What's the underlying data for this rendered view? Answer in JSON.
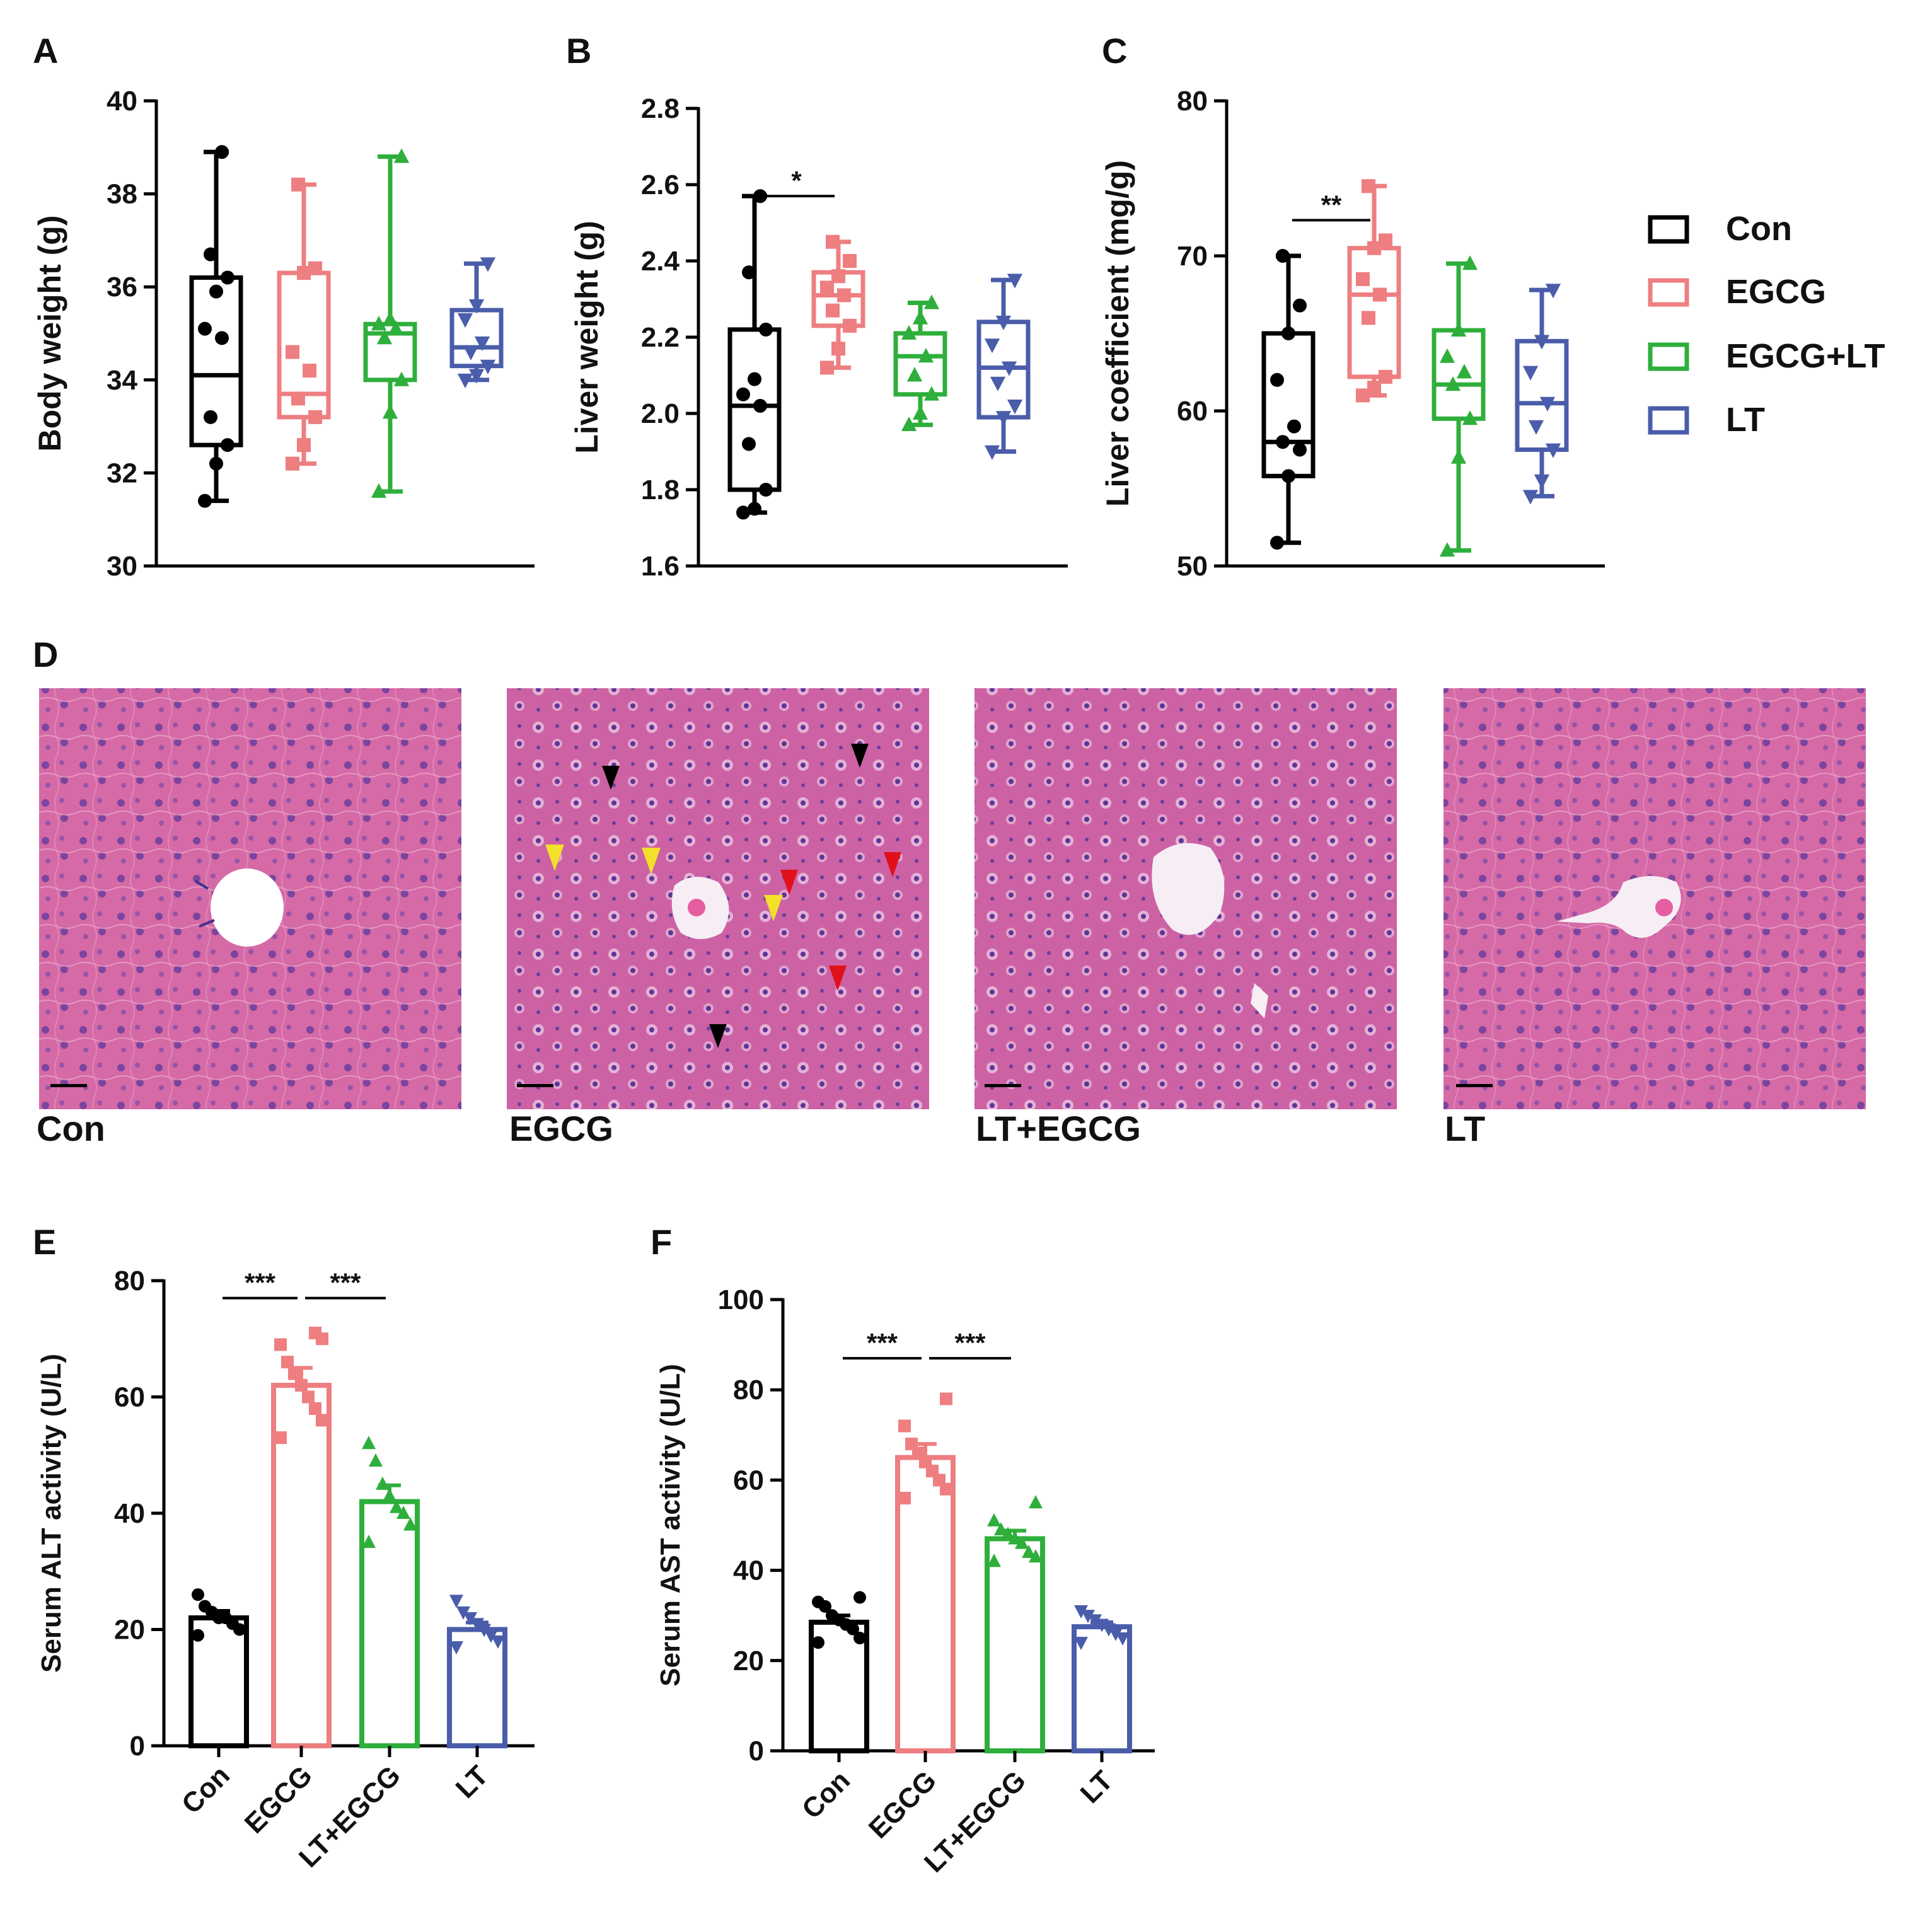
{
  "colors": {
    "Con": "#000000",
    "EGCG": "#EE7E80",
    "EGCG+LT": "#2EAF3B",
    "LT": "#4A5DAA",
    "axis": "#000000"
  },
  "panels": {
    "A": "A",
    "B": "B",
    "C": "C",
    "D": "D",
    "E": "E",
    "F": "F"
  },
  "legend": {
    "items": [
      {
        "label": "Con",
        "color": "#000000"
      },
      {
        "label": "EGCG",
        "color": "#EE7E80"
      },
      {
        "label": "EGCG+LT",
        "color": "#2EAF3B"
      },
      {
        "label": "LT",
        "color": "#4A5DAA"
      }
    ]
  },
  "micrographs": {
    "labels": [
      "Con",
      "EGCG",
      "LT+EGCG",
      "LT"
    ],
    "arrow_colors": [
      "black",
      "yellow",
      "red"
    ]
  },
  "chart_data": [
    {
      "id": "A",
      "type": "box",
      "ylabel": "Body weight (g)",
      "ylim": [
        30,
        40
      ],
      "yticks": [
        "30",
        "32",
        "34",
        "36",
        "38",
        "40"
      ],
      "groups": [
        {
          "name": "Con",
          "min": 31.4,
          "q1": 32.6,
          "median": 34.1,
          "q3": 36.2,
          "max": 38.9,
          "points": [
            31.4,
            32.2,
            32.6,
            33.2,
            34.9,
            35.1,
            35.9,
            36.2,
            36.7,
            38.9
          ],
          "marker": "circle"
        },
        {
          "name": "EGCG",
          "min": 32.2,
          "q1": 33.2,
          "median": 33.7,
          "q3": 36.3,
          "max": 38.2,
          "points": [
            32.2,
            32.6,
            33.2,
            33.6,
            34.2,
            34.6,
            36.3,
            36.4,
            38.2
          ],
          "marker": "square"
        },
        {
          "name": "EGCG+LT",
          "min": 31.6,
          "q1": 34.0,
          "median": 35.0,
          "q3": 35.2,
          "max": 38.8,
          "points": [
            31.6,
            33.3,
            34.0,
            34.9,
            35.1,
            35.2,
            35.3,
            38.8
          ],
          "marker": "triangle-up"
        },
        {
          "name": "LT",
          "min": 34.0,
          "q1": 34.3,
          "median": 34.7,
          "q3": 35.5,
          "max": 36.5,
          "points": [
            34.0,
            34.1,
            34.3,
            34.6,
            34.8,
            35.3,
            35.6,
            36.5
          ],
          "marker": "triangle-down"
        }
      ],
      "sig": []
    },
    {
      "id": "B",
      "type": "box",
      "ylabel": "Liver weight (g)",
      "ylim": [
        1.6,
        2.8
      ],
      "yticks": [
        "1.6",
        "1.8",
        "2.0",
        "2.2",
        "2.4",
        "2.6",
        "2.8"
      ],
      "groups": [
        {
          "name": "Con",
          "min": 1.74,
          "q1": 1.8,
          "median": 2.02,
          "q3": 2.22,
          "max": 2.57,
          "points": [
            1.74,
            1.75,
            1.8,
            1.92,
            2.02,
            2.05,
            2.09,
            2.22,
            2.37,
            2.57
          ],
          "marker": "circle"
        },
        {
          "name": "EGCG",
          "min": 2.12,
          "q1": 2.23,
          "median": 2.31,
          "q3": 2.37,
          "max": 2.45,
          "points": [
            2.12,
            2.17,
            2.23,
            2.27,
            2.31,
            2.33,
            2.36,
            2.4,
            2.45
          ],
          "marker": "square"
        },
        {
          "name": "EGCG+LT",
          "min": 1.97,
          "q1": 2.05,
          "median": 2.15,
          "q3": 2.21,
          "max": 2.29,
          "points": [
            1.97,
            2.0,
            2.05,
            2.1,
            2.15,
            2.21,
            2.25,
            2.29
          ],
          "marker": "triangle-up"
        },
        {
          "name": "LT",
          "min": 1.9,
          "q1": 1.99,
          "median": 2.12,
          "q3": 2.24,
          "max": 2.35,
          "points": [
            1.9,
            1.99,
            2.02,
            2.08,
            2.12,
            2.18,
            2.24,
            2.35
          ],
          "marker": "triangle-down"
        }
      ],
      "sig": [
        {
          "from": 0,
          "to": 1,
          "label": "*",
          "y": 2.57
        }
      ]
    },
    {
      "id": "C",
      "type": "box",
      "ylabel": "Liver coefficient (mg/g)",
      "ylim": [
        50,
        80
      ],
      "yticks": [
        "50",
        "60",
        "70",
        "80"
      ],
      "groups": [
        {
          "name": "Con",
          "min": 51.5,
          "q1": 55.8,
          "median": 58.0,
          "q3": 65.0,
          "max": 70.0,
          "points": [
            51.5,
            55.8,
            57.5,
            58.0,
            59.0,
            62.0,
            65.0,
            66.8,
            70.0
          ],
          "marker": "circle"
        },
        {
          "name": "EGCG",
          "min": 61.0,
          "q1": 62.2,
          "median": 67.5,
          "q3": 70.5,
          "max": 74.5,
          "points": [
            61.0,
            61.5,
            62.2,
            66.0,
            67.5,
            68.5,
            70.5,
            71.0,
            74.5
          ],
          "marker": "square"
        },
        {
          "name": "EGCG+LT",
          "min": 51.0,
          "q1": 59.5,
          "median": 61.7,
          "q3": 65.2,
          "max": 69.5,
          "points": [
            51.0,
            57.0,
            59.5,
            61.7,
            62.5,
            63.5,
            65.2,
            69.5
          ],
          "marker": "triangle-up"
        },
        {
          "name": "LT",
          "min": 54.5,
          "q1": 57.5,
          "median": 60.5,
          "q3": 64.5,
          "max": 67.8,
          "points": [
            54.5,
            55.5,
            57.5,
            59.0,
            60.5,
            62.5,
            64.5,
            67.8
          ],
          "marker": "triangle-down"
        }
      ],
      "sig": [
        {
          "from": 0,
          "to": 1,
          "label": "**",
          "y": 72.3
        }
      ]
    },
    {
      "id": "E",
      "type": "bar",
      "ylabel": "Serum ALT activity (U/L)",
      "ylim": [
        0,
        80
      ],
      "yticks": [
        "0",
        "20",
        "40",
        "60",
        "80"
      ],
      "categories": [
        "Con",
        "EGCG",
        "LT+EGCG",
        "LT"
      ],
      "values": [
        22,
        62,
        42,
        20
      ],
      "errors": [
        1.2,
        3.0,
        2.8,
        1.2
      ],
      "points": [
        [
          19,
          20,
          21,
          22,
          22,
          23,
          24,
          26
        ],
        [
          53,
          56,
          58,
          60,
          62,
          64,
          66,
          69,
          70,
          71
        ],
        [
          35,
          38,
          40,
          41,
          43,
          45,
          49,
          52
        ],
        [
          17,
          18,
          19,
          20,
          21,
          22,
          23,
          25
        ]
      ],
      "markers": [
        "circle",
        "square",
        "triangle-up",
        "triangle-down"
      ],
      "sig": [
        {
          "from": 0,
          "to": 1,
          "label": "***",
          "y": 77
        },
        {
          "from": 1,
          "to": 2,
          "label": "***",
          "y": 77
        }
      ]
    },
    {
      "id": "F",
      "type": "bar",
      "ylabel": "Serum AST activity (U/L)",
      "ylim": [
        0,
        100
      ],
      "yticks": [
        "0",
        "20",
        "40",
        "60",
        "80",
        "100"
      ],
      "categories": [
        "Con",
        "EGCG",
        "LT+EGCG",
        "LT"
      ],
      "values": [
        28.5,
        65,
        47,
        27.5
      ],
      "errors": [
        1.5,
        3.0,
        1.8,
        1.0
      ],
      "points": [
        [
          24,
          25,
          27,
          28,
          29,
          30,
          32,
          33,
          34
        ],
        [
          56,
          58,
          60,
          62,
          64,
          66,
          68,
          72,
          78
        ],
        [
          42,
          43,
          44,
          46,
          47,
          48,
          49,
          51,
          55
        ],
        [
          24,
          25,
          26,
          27,
          28,
          29,
          30,
          31
        ]
      ],
      "markers": [
        "circle",
        "square",
        "triangle-up",
        "triangle-down"
      ],
      "sig": [
        {
          "from": 0,
          "to": 1,
          "label": "***",
          "y": 87
        },
        {
          "from": 1,
          "to": 2,
          "label": "***",
          "y": 87
        }
      ]
    }
  ]
}
